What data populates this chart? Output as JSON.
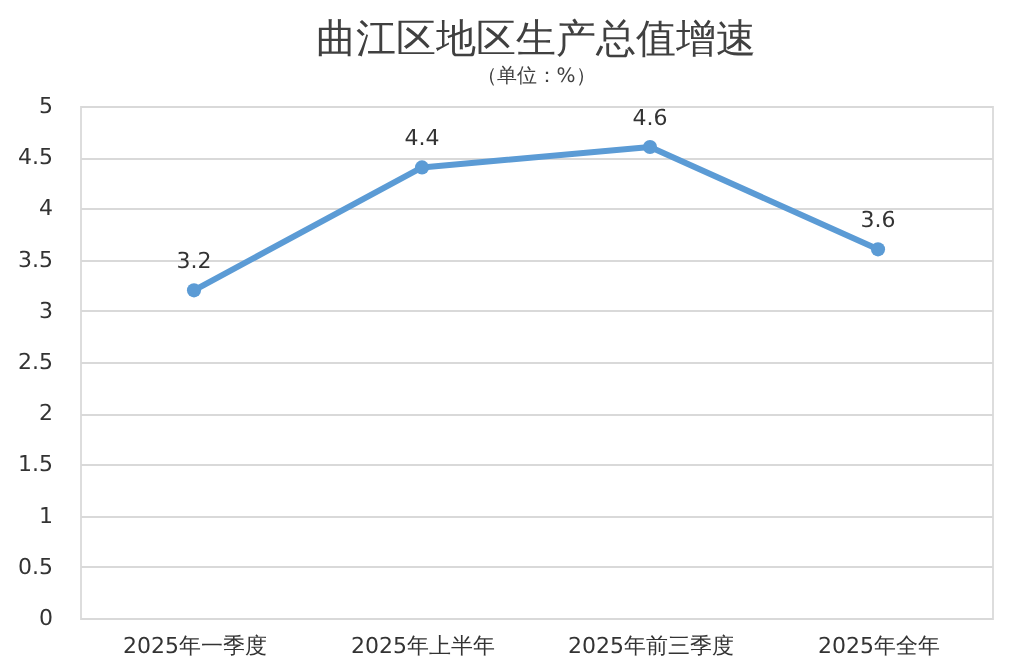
{
  "chart_data": {
    "type": "line",
    "title": "曲江区地区生产总值增速",
    "subtitle": "（单位：%）",
    "categories": [
      "2025年一季度",
      "2025年上半年",
      "2025年前三季度",
      "2025年全年"
    ],
    "series": [
      {
        "color": "#5b9bd5",
        "values": [
          3.2,
          4.4,
          4.6,
          3.6
        ]
      }
    ],
    "ylim": [
      0,
      5
    ],
    "yticks": [
      0,
      0.5,
      1,
      1.5,
      2,
      2.5,
      3,
      3.5,
      4,
      4.5,
      5
    ],
    "grid": "y",
    "marker": "circle",
    "line_style": "solid",
    "data_labels": true,
    "legend": false
  }
}
